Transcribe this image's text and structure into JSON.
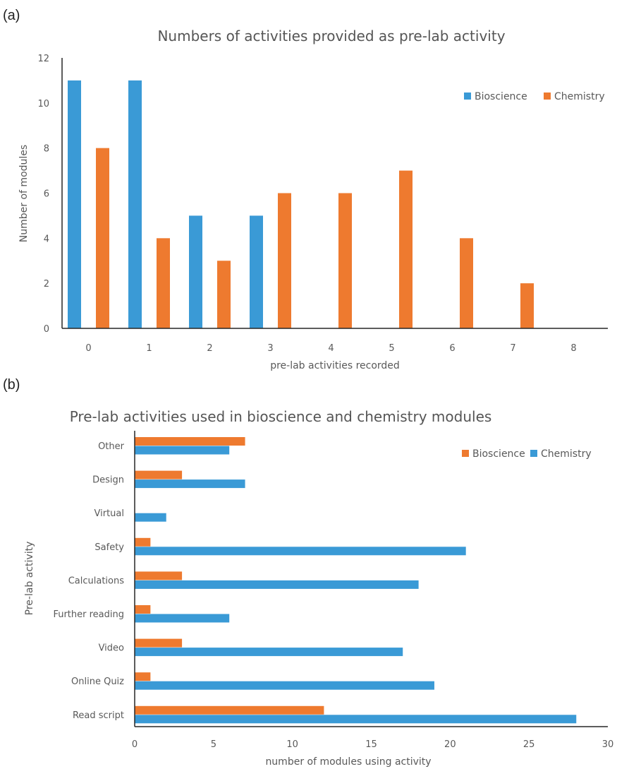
{
  "chart_data": [
    {
      "type": "bar",
      "panel_label": "(a)",
      "title": "Numbers of activities provided as pre-lab activity",
      "xlabel": "pre-lab activities recorded",
      "ylabel": "Number of modules",
      "categories": [
        "0",
        "1",
        "2",
        "3",
        "4",
        "5",
        "6",
        "7",
        "8"
      ],
      "ylim": [
        0,
        12
      ],
      "yticks": [
        0,
        2,
        4,
        6,
        8,
        10,
        12
      ],
      "grid": false,
      "legend_position": "top-right",
      "series": [
        {
          "name": "Bioscience",
          "color": "#3a9ad6",
          "values": [
            11,
            11,
            5,
            5,
            0,
            0,
            0,
            0,
            0
          ]
        },
        {
          "name": "Chemistry",
          "color": "#ee7a2f",
          "values": [
            8,
            4,
            3,
            6,
            6,
            7,
            4,
            2,
            0
          ]
        }
      ]
    },
    {
      "type": "bar",
      "orientation": "horizontal",
      "panel_label": "(b)",
      "title": "Pre-lab activities used in bioscience and chemistry modules",
      "xlabel": "number of modules using activity",
      "ylabel": "Pre-lab activity",
      "categories": [
        "Other",
        "Design",
        "Virtual",
        "Safety",
        "Calculations",
        "Further reading",
        "Video",
        "Online Quiz",
        "Read script"
      ],
      "xlim": [
        0,
        30
      ],
      "xticks": [
        0,
        5,
        10,
        15,
        20,
        25,
        30
      ],
      "grid": false,
      "legend_position": "top-right",
      "series": [
        {
          "name": "Bioscience",
          "color": "#ee7a2f",
          "values": [
            7,
            3,
            0,
            1,
            3,
            1,
            3,
            1,
            12
          ]
        },
        {
          "name": "Chemistry",
          "color": "#3a9ad6",
          "values": [
            6,
            7,
            2,
            21,
            18,
            6,
            17,
            19,
            28
          ]
        }
      ]
    }
  ]
}
